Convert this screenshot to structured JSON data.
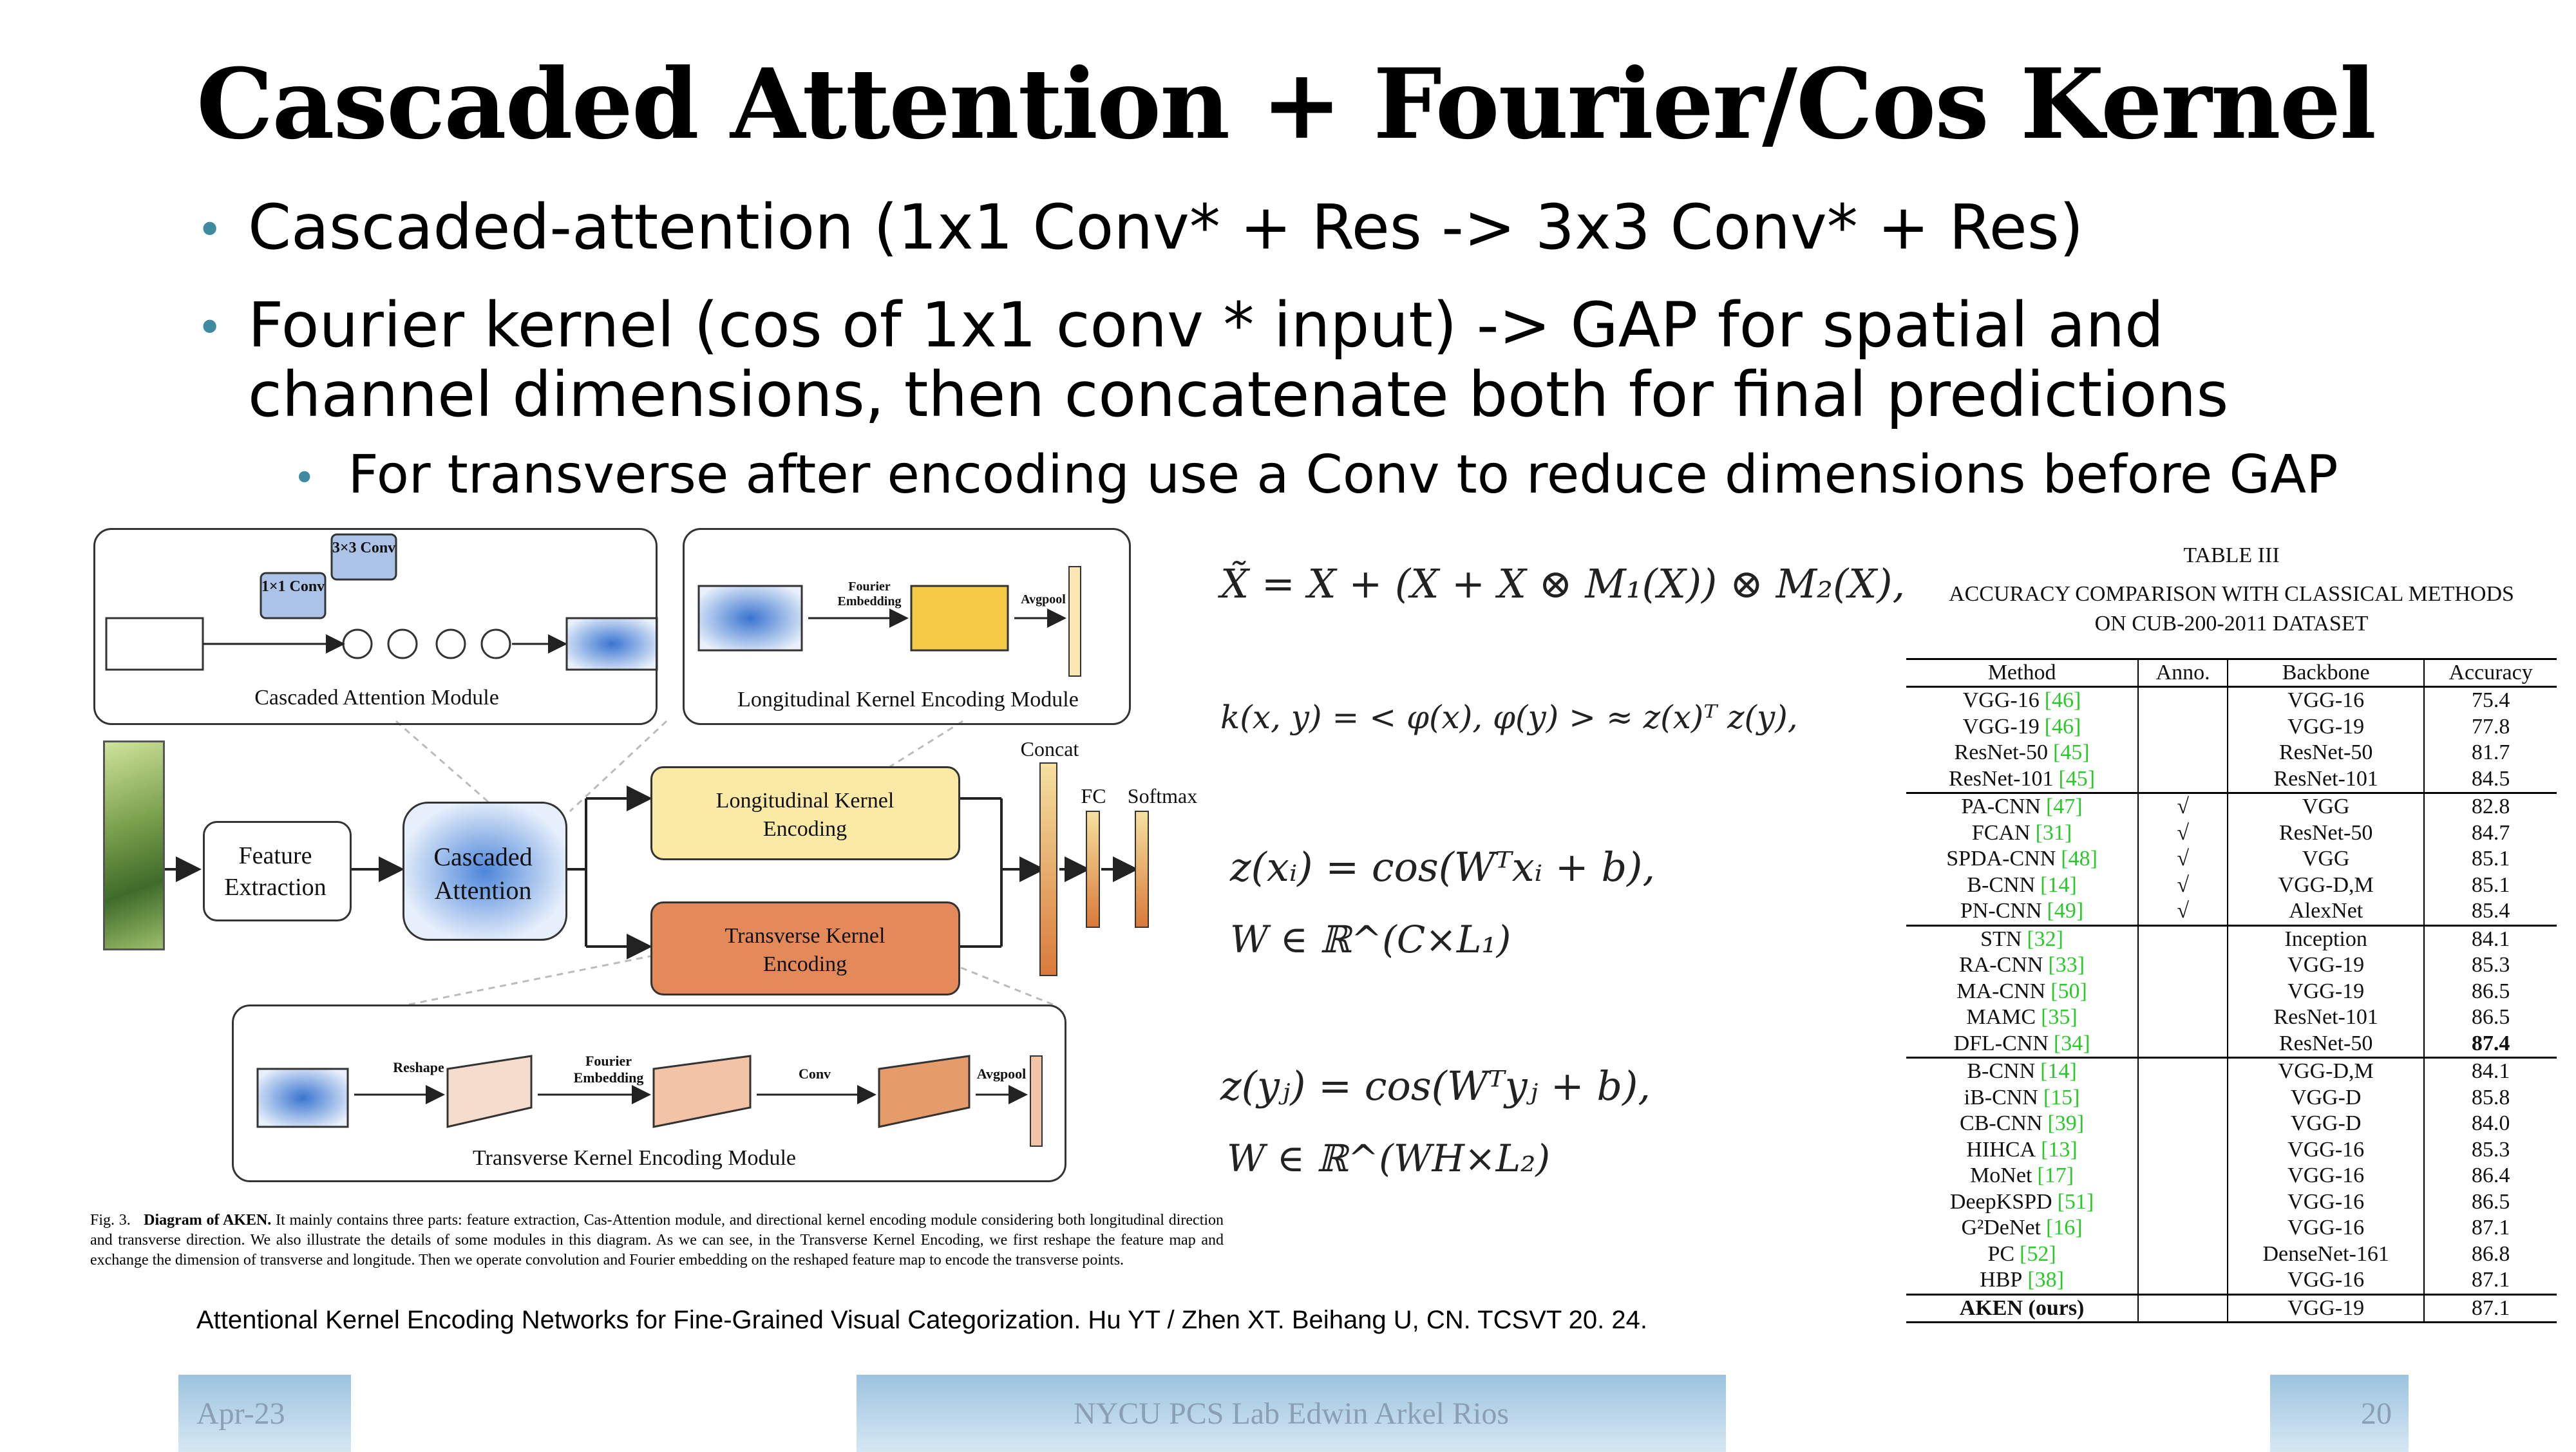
{
  "slide": {
    "title": "Cascaded Attention + Fourier/Cos Kernel",
    "bullets": [
      "Cascaded-attention (1x1 Conv* + Res -> 3x3 Conv* + Res)",
      "Fourier kernel (cos of 1x1 conv * input) -> GAP for spatial and channel dimensions, then concatenate both for final predictions"
    ],
    "sub_bullet": "For transverse after encoding use a Conv to reduce dimensions before GAP",
    "reference": "Attentional Kernel Encoding Networks for Fine-Grained Visual Categorization. Hu YT / Zhen XT. Beihang U, CN. TCSVT 20. 24."
  },
  "figure": {
    "cascaded_module": "Cascaded Attention Module",
    "longitudinal_module": "Longitudinal Kernel Encoding Module",
    "transverse_module": "Transverse Kernel Encoding Module",
    "feature_extraction": "Feature Extraction",
    "cascaded_attention": "Cascaded Attention",
    "longitudinal_block": "Longitudinal Kernel Encoding",
    "transverse_block": "Transverse Kernel Encoding",
    "concat": "Concat",
    "fc": "FC",
    "softmax": "Softmax",
    "conv1": "1×1 Conv",
    "conv3": "3×3 Conv",
    "reshape": "Reshape",
    "fourier_embedding": "Fourier Embedding",
    "conv": "Conv",
    "avgpool": "Avgpool",
    "caption_lead": "Fig. 3.",
    "caption_bold": "Diagram of AKEN.",
    "caption": "It mainly contains three parts: feature extraction, Cas-Attention module, and directional kernel encoding module considering both longitudinal direction and transverse direction. We also illustrate the details of some modules in this diagram. As we can see, in the Transverse Kernel Encoding, we first reshape the feature map and exchange the dimension of transverse and longitude. Then we operate convolution and Fourier embedding on the reshaped feature map to encode the transverse points."
  },
  "equations": {
    "eq1": "X̃ = X + (X + X ⊗ M₁(X)) ⊗ M₂(X),",
    "eq2": "k(x, y) = < φ(x), φ(y) > ≈ z(x)ᵀ z(y),",
    "eq3a": "z(xᵢ) = cos(Wᵀxᵢ + b),",
    "eq3b": "W ∈ ℝ^(C×L₁)",
    "eq4a": "z(yⱼ) = cos(Wᵀyⱼ + b),",
    "eq4b": "W ∈ ℝ^(WH×L₂)"
  },
  "table": {
    "caption_title": "TABLE III",
    "caption_line1": "ACCURACY COMPARISON WITH CLASSICAL METHODS",
    "caption_line2": "ON CUB-200-2011 DATASET",
    "headers": [
      "Method",
      "Anno.",
      "Backbone",
      "Accuracy"
    ],
    "rows": [
      {
        "method": "VGG-16",
        "ref": "[46]",
        "anno": "",
        "backbone": "VGG-16",
        "acc": "75.4"
      },
      {
        "method": "VGG-19",
        "ref": "[46]",
        "anno": "",
        "backbone": "VGG-19",
        "acc": "77.8"
      },
      {
        "method": "ResNet-50",
        "ref": "[45]",
        "anno": "",
        "backbone": "ResNet-50",
        "acc": "81.7"
      },
      {
        "method": "ResNet-101",
        "ref": "[45]",
        "anno": "",
        "backbone": "ResNet-101",
        "acc": "84.5"
      },
      {
        "method": "PA-CNN",
        "ref": "[47]",
        "anno": "√",
        "backbone": "VGG",
        "acc": "82.8"
      },
      {
        "method": "FCAN",
        "ref": "[31]",
        "anno": "√",
        "backbone": "ResNet-50",
        "acc": "84.7"
      },
      {
        "method": "SPDA-CNN",
        "ref": "[48]",
        "anno": "√",
        "backbone": "VGG",
        "acc": "85.1"
      },
      {
        "method": "B-CNN",
        "ref": "[14]",
        "anno": "√",
        "backbone": "VGG-D,M",
        "acc": "85.1"
      },
      {
        "method": "PN-CNN",
        "ref": "[49]",
        "anno": "√",
        "backbone": "AlexNet",
        "acc": "85.4"
      },
      {
        "method": "STN",
        "ref": "[32]",
        "anno": "",
        "backbone": "Inception",
        "acc": "84.1"
      },
      {
        "method": "RA-CNN",
        "ref": "[33]",
        "anno": "",
        "backbone": "VGG-19",
        "acc": "85.3"
      },
      {
        "method": "MA-CNN",
        "ref": "[50]",
        "anno": "",
        "backbone": "VGG-19",
        "acc": "86.5"
      },
      {
        "method": "MAMC",
        "ref": "[35]",
        "anno": "",
        "backbone": "ResNet-101",
        "acc": "86.5"
      },
      {
        "method": "DFL-CNN",
        "ref": "[34]",
        "anno": "",
        "backbone": "ResNet-50",
        "acc": "87.4"
      },
      {
        "method": "B-CNN",
        "ref": "[14]",
        "anno": "",
        "backbone": "VGG-D,M",
        "acc": "84.1"
      },
      {
        "method": "iB-CNN",
        "ref": "[15]",
        "anno": "",
        "backbone": "VGG-D",
        "acc": "85.8"
      },
      {
        "method": "CB-CNN",
        "ref": "[39]",
        "anno": "",
        "backbone": "VGG-D",
        "acc": "84.0"
      },
      {
        "method": "HIHCA",
        "ref": "[13]",
        "anno": "",
        "backbone": "VGG-16",
        "acc": "85.3"
      },
      {
        "method": "MoNet",
        "ref": "[17]",
        "anno": "",
        "backbone": "VGG-16",
        "acc": "86.4"
      },
      {
        "method": "DeepKSPD",
        "ref": "[51]",
        "anno": "",
        "backbone": "VGG-16",
        "acc": "86.5"
      },
      {
        "method": "G²DeNet",
        "ref": "[16]",
        "anno": "",
        "backbone": "VGG-16",
        "acc": "87.1"
      },
      {
        "method": "PC",
        "ref": "[52]",
        "anno": "",
        "backbone": "DenseNet-161",
        "acc": "86.8"
      },
      {
        "method": "HBP",
        "ref": "[38]",
        "anno": "",
        "backbone": "VGG-16",
        "acc": "87.1"
      },
      {
        "method": "AKEN (ours)",
        "ref": "",
        "anno": "",
        "backbone": "VGG-19",
        "acc": "87.1"
      }
    ]
  },
  "footer": {
    "date": "Apr-23",
    "center": "NYCU PCS Lab Edwin Arkel Rios",
    "page": "20"
  }
}
